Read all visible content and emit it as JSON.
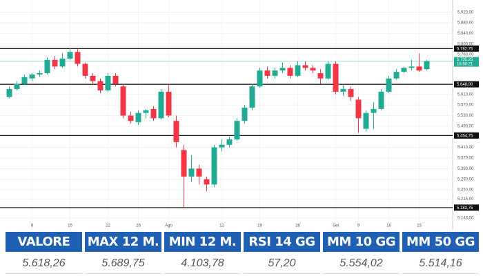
{
  "chart_data": {
    "type": "candlestick",
    "categories": [
      null,
      null,
      null,
      "8",
      null,
      null,
      null,
      null,
      "15",
      null,
      null,
      null,
      null,
      "22",
      null,
      null,
      null,
      "26",
      null,
      null,
      null,
      "Ago",
      null,
      null,
      null,
      null,
      null,
      null,
      "12",
      null,
      null,
      null,
      null,
      "19",
      null,
      null,
      null,
      null,
      "26",
      null,
      null,
      null,
      null,
      "Set",
      null,
      null,
      "9",
      null,
      null,
      null,
      "16",
      null,
      null,
      null,
      "23",
      null
    ],
    "open": [
      5600,
      5630,
      5650,
      5670,
      5685,
      5690,
      5740,
      5715,
      5745,
      5770,
      5725,
      5680,
      5660,
      5625,
      5680,
      5640,
      5530,
      5505,
      5540,
      5555,
      5520,
      5620,
      5510,
      5400,
      5300,
      5330,
      5290,
      5270,
      5410,
      5420,
      5440,
      5510,
      5560,
      5640,
      5700,
      5680,
      5700,
      5710,
      5680,
      5720,
      5710,
      5690,
      5670,
      5725,
      5620,
      5630,
      5590,
      5480,
      5540,
      5555,
      5620,
      5670,
      5695,
      5710,
      5715,
      5705
    ],
    "high": [
      5640,
      5660,
      5685,
      5690,
      5700,
      5750,
      5755,
      5765,
      5785,
      5782.75,
      5730,
      5690,
      5670,
      5690,
      5690,
      5650,
      5545,
      5550,
      5555,
      5565,
      5630,
      5650,
      5530,
      5420,
      5380,
      5345,
      5300,
      5420,
      5440,
      5450,
      5520,
      5570,
      5650,
      5710,
      5715,
      5710,
      5730,
      5720,
      5735,
      5735,
      5720,
      5705,
      5735,
      5735,
      5650,
      5640,
      5600,
      5550,
      5580,
      5630,
      5680,
      5705,
      5715,
      5740,
      5765,
      5740
    ],
    "low": [
      5595,
      5625,
      5645,
      5660,
      5675,
      5685,
      5705,
      5710,
      5740,
      5715,
      5670,
      5645,
      5615,
      5620,
      5640,
      5520,
      5500,
      5495,
      5520,
      5510,
      5515,
      5525,
      5410,
      5182.75,
      5280,
      5270,
      5245,
      5260,
      5395,
      5410,
      5435,
      5500,
      5550,
      5635,
      5670,
      5670,
      5690,
      5670,
      5675,
      5700,
      5690,
      5650,
      5665,
      5610,
      5605,
      5585,
      5465,
      5470,
      5480,
      5550,
      5615,
      5665,
      5690,
      5700,
      5695,
      5700
    ],
    "close": [
      5630,
      5650,
      5675,
      5685,
      5690,
      5740,
      5715,
      5745,
      5770,
      5725,
      5680,
      5660,
      5625,
      5680,
      5650,
      5530,
      5510,
      5540,
      5550,
      5520,
      5620,
      5530,
      5430,
      5300,
      5330,
      5300,
      5270,
      5410,
      5420,
      5440,
      5510,
      5560,
      5640,
      5700,
      5680,
      5700,
      5710,
      5680,
      5720,
      5710,
      5700,
      5670,
      5725,
      5620,
      5630,
      5600,
      5520,
      5540,
      5555,
      5620,
      5670,
      5695,
      5710,
      5715,
      5700,
      5735.25
    ],
    "up_color": "#22ab94",
    "down_color": "#f23645",
    "ylim": [
      5120,
      5940
    ],
    "yticks": [
      {
        "value": 5920,
        "label": "5.920,00"
      },
      {
        "value": 5880,
        "label": "5.880,00"
      },
      {
        "value": 5840,
        "label": "5.840,00"
      },
      {
        "value": 5800,
        "label": "5.800,00"
      },
      {
        "value": 5760,
        "label": "5.760,00"
      },
      {
        "value": 5610,
        "label": "5.610,00"
      },
      {
        "value": 5570,
        "label": "5.570,00"
      },
      {
        "value": 5530,
        "label": "5.530,00"
      },
      {
        "value": 5490,
        "label": "5.490,00"
      },
      {
        "value": 5410,
        "label": "5.410,00"
      },
      {
        "value": 5370,
        "label": "5.370,00"
      },
      {
        "value": 5330,
        "label": "5.330,00"
      },
      {
        "value": 5290,
        "label": "5.290,00"
      },
      {
        "value": 5250,
        "label": "5.250,00"
      },
      {
        "value": 5215,
        "label": "5.215,00"
      },
      {
        "value": 5143,
        "label": "5.143,00"
      }
    ],
    "levels": [
      {
        "value": 5782.75,
        "label": "5.782,75"
      },
      {
        "value": 5648,
        "label": "5.648,00"
      },
      {
        "value": 5454.75,
        "label": "5.454,75"
      },
      {
        "value": 5182.75,
        "label": "5.182,75"
      }
    ],
    "last_price": {
      "value": 5735.25,
      "label": "5.735,25",
      "time": "16:50:21"
    },
    "grid": true
  },
  "table": {
    "headers": [
      "VALORE",
      "MAX 12 M.",
      "MIN 12 M.",
      "RSI 14 GG",
      "MM 10 GG",
      "MM 50 GG"
    ],
    "values": [
      "5.618,26",
      "5.689,75",
      "4.103,78",
      "57,20",
      "5.554,02",
      "5.514,16"
    ]
  }
}
